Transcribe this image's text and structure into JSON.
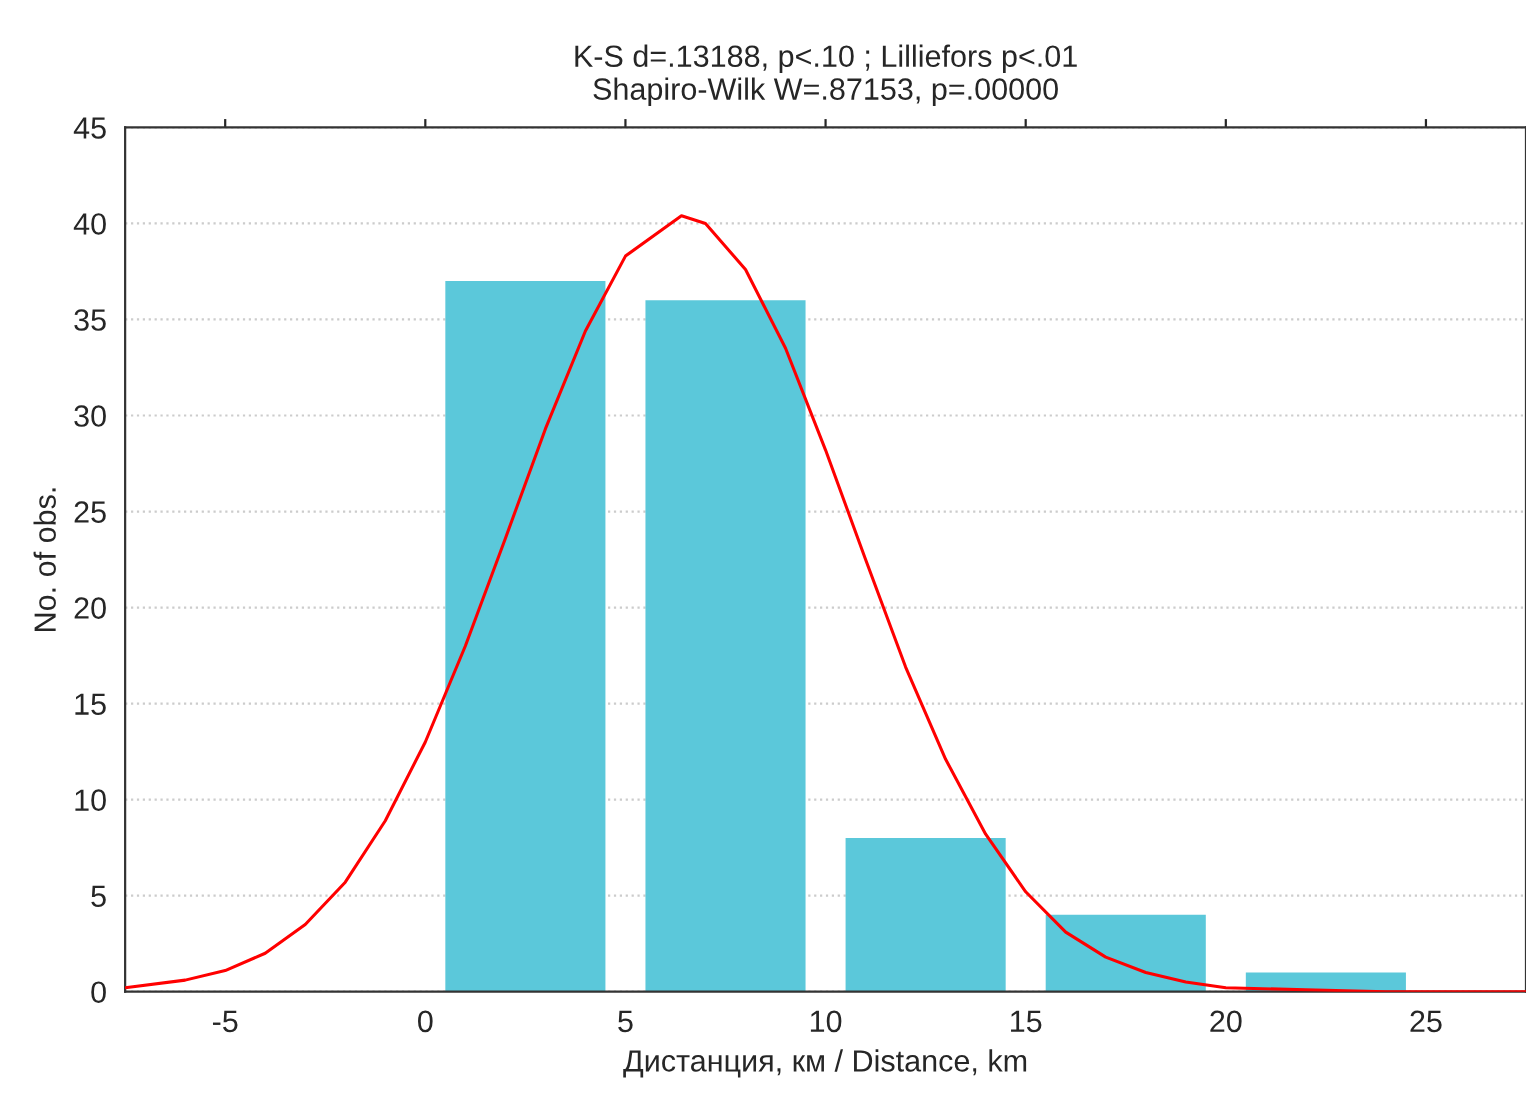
{
  "chart_data": {
    "type": "histogram",
    "title": "K-S d=.13188, p<.10 ; Lilliefors p<.01\nShapiro-Wilk W=.87153, p=.00000",
    "xlabel": "Дистанция, км / Distance, km",
    "ylabel": "No. of obs.",
    "bins": [
      0,
      5,
      10,
      15,
      20,
      25
    ],
    "values": [
      37,
      36,
      8,
      4,
      1
    ],
    "color": "#5bc8da",
    "series": [
      {
        "type": "line",
        "color": "#ff0000",
        "x": [
          -7.5,
          -6,
          -5,
          -4,
          -3,
          -2,
          -1,
          0,
          1,
          2,
          3,
          4,
          5,
          6.4,
          7,
          8,
          9,
          10,
          11,
          12,
          13,
          14,
          15,
          16,
          17,
          18,
          19,
          20,
          22,
          24,
          27.5
        ],
        "values": [
          0.2,
          0.6,
          1.1,
          2.0,
          3.5,
          5.7,
          8.9,
          13.0,
          18.0,
          23.6,
          29.3,
          34.4,
          38.3,
          40.4,
          40.0,
          37.6,
          33.5,
          28.2,
          22.5,
          16.9,
          12.1,
          8.2,
          5.2,
          3.1,
          1.8,
          1.0,
          0.5,
          0.2,
          0.1,
          0,
          0
        ]
      }
    ],
    "xlim": [
      -7.5,
      27.5
    ],
    "xticks": [
      -5,
      0,
      5,
      10,
      15,
      20,
      25
    ],
    "ylim": [
      0,
      45
    ],
    "yticks": [
      0,
      5,
      10,
      15,
      20,
      25,
      30,
      35,
      40,
      45
    ],
    "grid": "y"
  }
}
